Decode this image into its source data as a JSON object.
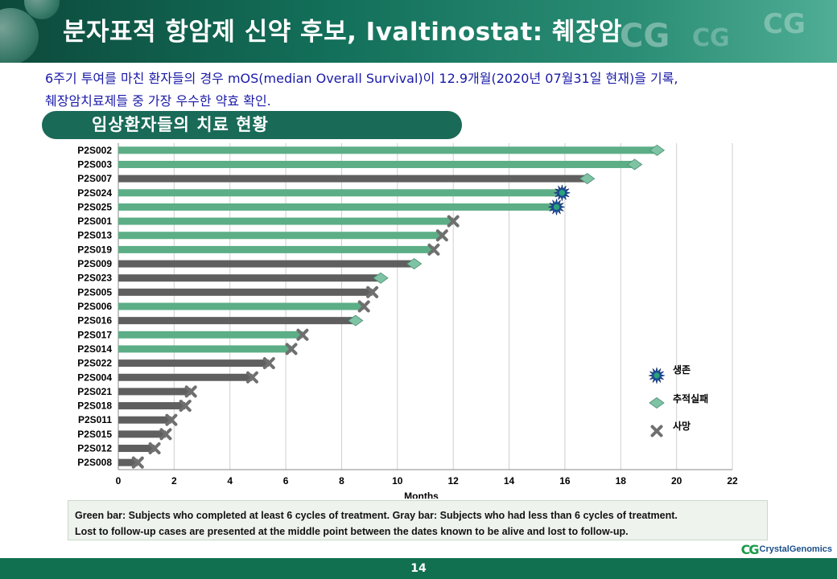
{
  "header": {
    "title": "분자표적 항암제 신약 후보, Ivaltinostat: 췌장암",
    "logo_watermark": "CG"
  },
  "intro": {
    "line1": "6주기 투여를 마친 환자들의 경우 mOS(median Overall Survival)이 12.9개월(2020년 07월31일 현재)을 기록,",
    "line2": "췌장암치료제들 중 가장 우수한 약효 확인."
  },
  "section": {
    "title": "임상환자들의 치료 현황"
  },
  "chart_data": {
    "type": "bar",
    "orientation": "horizontal",
    "title": "",
    "xlabel": "Months",
    "ylabel": "",
    "xlim": [
      0,
      22
    ],
    "xticks": [
      0,
      2,
      4,
      6,
      8,
      10,
      12,
      14,
      16,
      18,
      20,
      22
    ],
    "grid": true,
    "legend_position": "right",
    "colors": {
      "green": "#5cae86",
      "gray": "#5f5f5f",
      "survive": "#1f4f9a",
      "survive_core": "#29a37a",
      "lost": "#7ec4a4",
      "death": "#6f6f6f"
    },
    "legend": [
      {
        "key": "survive",
        "label": "생존"
      },
      {
        "key": "lost",
        "label": "추적실패"
      },
      {
        "key": "death",
        "label": "사망"
      }
    ],
    "subjects": [
      {
        "id": "P2S002",
        "bar": "green",
        "value": 19.3,
        "outcome": "lost"
      },
      {
        "id": "P2S003",
        "bar": "green",
        "value": 18.5,
        "outcome": "lost"
      },
      {
        "id": "P2S007",
        "bar": "gray",
        "value": 16.8,
        "outcome": "lost"
      },
      {
        "id": "P2S024",
        "bar": "green",
        "value": 15.9,
        "outcome": "survive"
      },
      {
        "id": "P2S025",
        "bar": "green",
        "value": 15.7,
        "outcome": "survive"
      },
      {
        "id": "P2S001",
        "bar": "green",
        "value": 12.0,
        "outcome": "death"
      },
      {
        "id": "P2S013",
        "bar": "green",
        "value": 11.6,
        "outcome": "death"
      },
      {
        "id": "P2S019",
        "bar": "green",
        "value": 11.3,
        "outcome": "death"
      },
      {
        "id": "P2S009",
        "bar": "gray",
        "value": 10.6,
        "outcome": "lost"
      },
      {
        "id": "P2S023",
        "bar": "gray",
        "value": 9.4,
        "outcome": "lost"
      },
      {
        "id": "P2S005",
        "bar": "gray",
        "value": 9.1,
        "outcome": "death"
      },
      {
        "id": "P2S006",
        "bar": "green",
        "value": 8.8,
        "outcome": "death"
      },
      {
        "id": "P2S016",
        "bar": "gray",
        "value": 8.5,
        "outcome": "lost"
      },
      {
        "id": "P2S017",
        "bar": "green",
        "value": 6.6,
        "outcome": "death"
      },
      {
        "id": "P2S014",
        "bar": "green",
        "value": 6.2,
        "outcome": "death"
      },
      {
        "id": "P2S022",
        "bar": "gray",
        "value": 5.4,
        "outcome": "death"
      },
      {
        "id": "P2S004",
        "bar": "gray",
        "value": 4.8,
        "outcome": "death"
      },
      {
        "id": "P2S021",
        "bar": "gray",
        "value": 2.6,
        "outcome": "death"
      },
      {
        "id": "P2S018",
        "bar": "gray",
        "value": 2.4,
        "outcome": "death"
      },
      {
        "id": "P2S011",
        "bar": "gray",
        "value": 1.9,
        "outcome": "death"
      },
      {
        "id": "P2S015",
        "bar": "gray",
        "value": 1.7,
        "outcome": "death"
      },
      {
        "id": "P2S012",
        "bar": "gray",
        "value": 1.3,
        "outcome": "death"
      },
      {
        "id": "P2S008",
        "bar": "gray",
        "value": 0.7,
        "outcome": "death"
      }
    ]
  },
  "footnote": {
    "line1": "Green bar: Subjects who completed at least 6 cycles of treatment.  Gray bar: Subjects who had less than 6 cycles of treatment.",
    "line2": "Lost to follow-up cases are presented at the middle point between the dates known to be alive and lost to follow-up."
  },
  "footer": {
    "page_number": "14",
    "brand_mark": "CG",
    "brand_name": "CrystalGenomics"
  }
}
